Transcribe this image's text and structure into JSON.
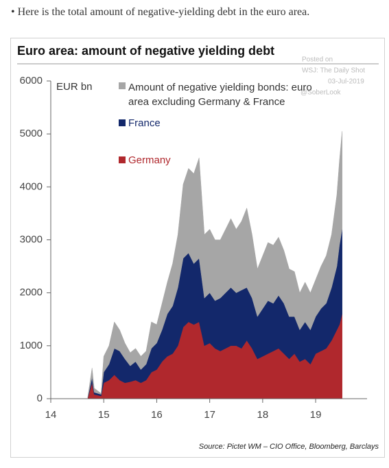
{
  "intro": "Here is the total amount of negative-yielding debt in the euro area.",
  "chart_data": {
    "type": "area",
    "stacked": true,
    "title": "Euro area: amount of negative yielding debt",
    "y_label": "EUR bn",
    "annotations": [
      "Posted on",
      "WSJ: The Daily Shot",
      "03-Jul-2019",
      "@SoberLook"
    ],
    "source": "Source: Pictet WM – CIO Office, Bloomberg, Barclays",
    "xlim": [
      14,
      19.97
    ],
    "xticks": [
      14,
      15,
      16,
      17,
      18,
      19
    ],
    "ylim": [
      0,
      6000
    ],
    "yticks": [
      0,
      1000,
      2000,
      3000,
      4000,
      5000,
      6000
    ],
    "x": [
      14.7,
      14.78,
      14.82,
      14.95,
      15.0,
      15.1,
      15.2,
      15.3,
      15.4,
      15.5,
      15.6,
      15.7,
      15.8,
      15.9,
      16.0,
      16.1,
      16.2,
      16.3,
      16.4,
      16.5,
      16.6,
      16.7,
      16.8,
      16.9,
      17.0,
      17.1,
      17.2,
      17.3,
      17.4,
      17.5,
      17.6,
      17.7,
      17.8,
      17.9,
      18.0,
      18.1,
      18.2,
      18.3,
      18.4,
      18.5,
      18.6,
      18.7,
      18.8,
      18.9,
      19.0,
      19.1,
      19.2,
      19.3,
      19.4,
      19.45,
      19.5
    ],
    "series": [
      {
        "name": "Germany",
        "color": "#b0282d",
        "values": [
          20,
          300,
          80,
          50,
          300,
          350,
          450,
          350,
          300,
          320,
          350,
          300,
          350,
          500,
          550,
          700,
          800,
          850,
          1000,
          1350,
          1450,
          1400,
          1450,
          1000,
          1050,
          950,
          900,
          950,
          1000,
          1000,
          950,
          1100,
          950,
          750,
          800,
          850,
          900,
          950,
          850,
          750,
          850,
          700,
          750,
          650,
          850,
          900,
          950,
          1100,
          1300,
          1400,
          1600
        ]
      },
      {
        "name": "France",
        "color": "#13286b",
        "values": [
          10,
          100,
          40,
          30,
          200,
          300,
          500,
          550,
          450,
          300,
          350,
          250,
          300,
          450,
          500,
          600,
          800,
          900,
          1100,
          1300,
          1300,
          1150,
          1200,
          900,
          950,
          900,
          1000,
          1050,
          1100,
          1000,
          1100,
          1000,
          950,
          800,
          900,
          1000,
          900,
          1000,
          950,
          800,
          700,
          600,
          700,
          650,
          700,
          800,
          850,
          1000,
          1200,
          1500,
          1600
        ]
      },
      {
        "name": "Amount of negative yielding bonds: euro area excluding Germany & France",
        "color": "#a6a6a6",
        "values": [
          20,
          180,
          80,
          20,
          300,
          350,
          500,
          400,
          300,
          250,
          250,
          250,
          250,
          500,
          350,
          500,
          600,
          800,
          1000,
          1400,
          1600,
          1700,
          1900,
          1200,
          1200,
          1150,
          1100,
          1200,
          1300,
          1200,
          1300,
          1500,
          1200,
          900,
          1000,
          1100,
          1100,
          1100,
          1000,
          900,
          850,
          700,
          750,
          700,
          700,
          800,
          900,
          1000,
          1350,
          1600,
          1850
        ]
      }
    ]
  }
}
